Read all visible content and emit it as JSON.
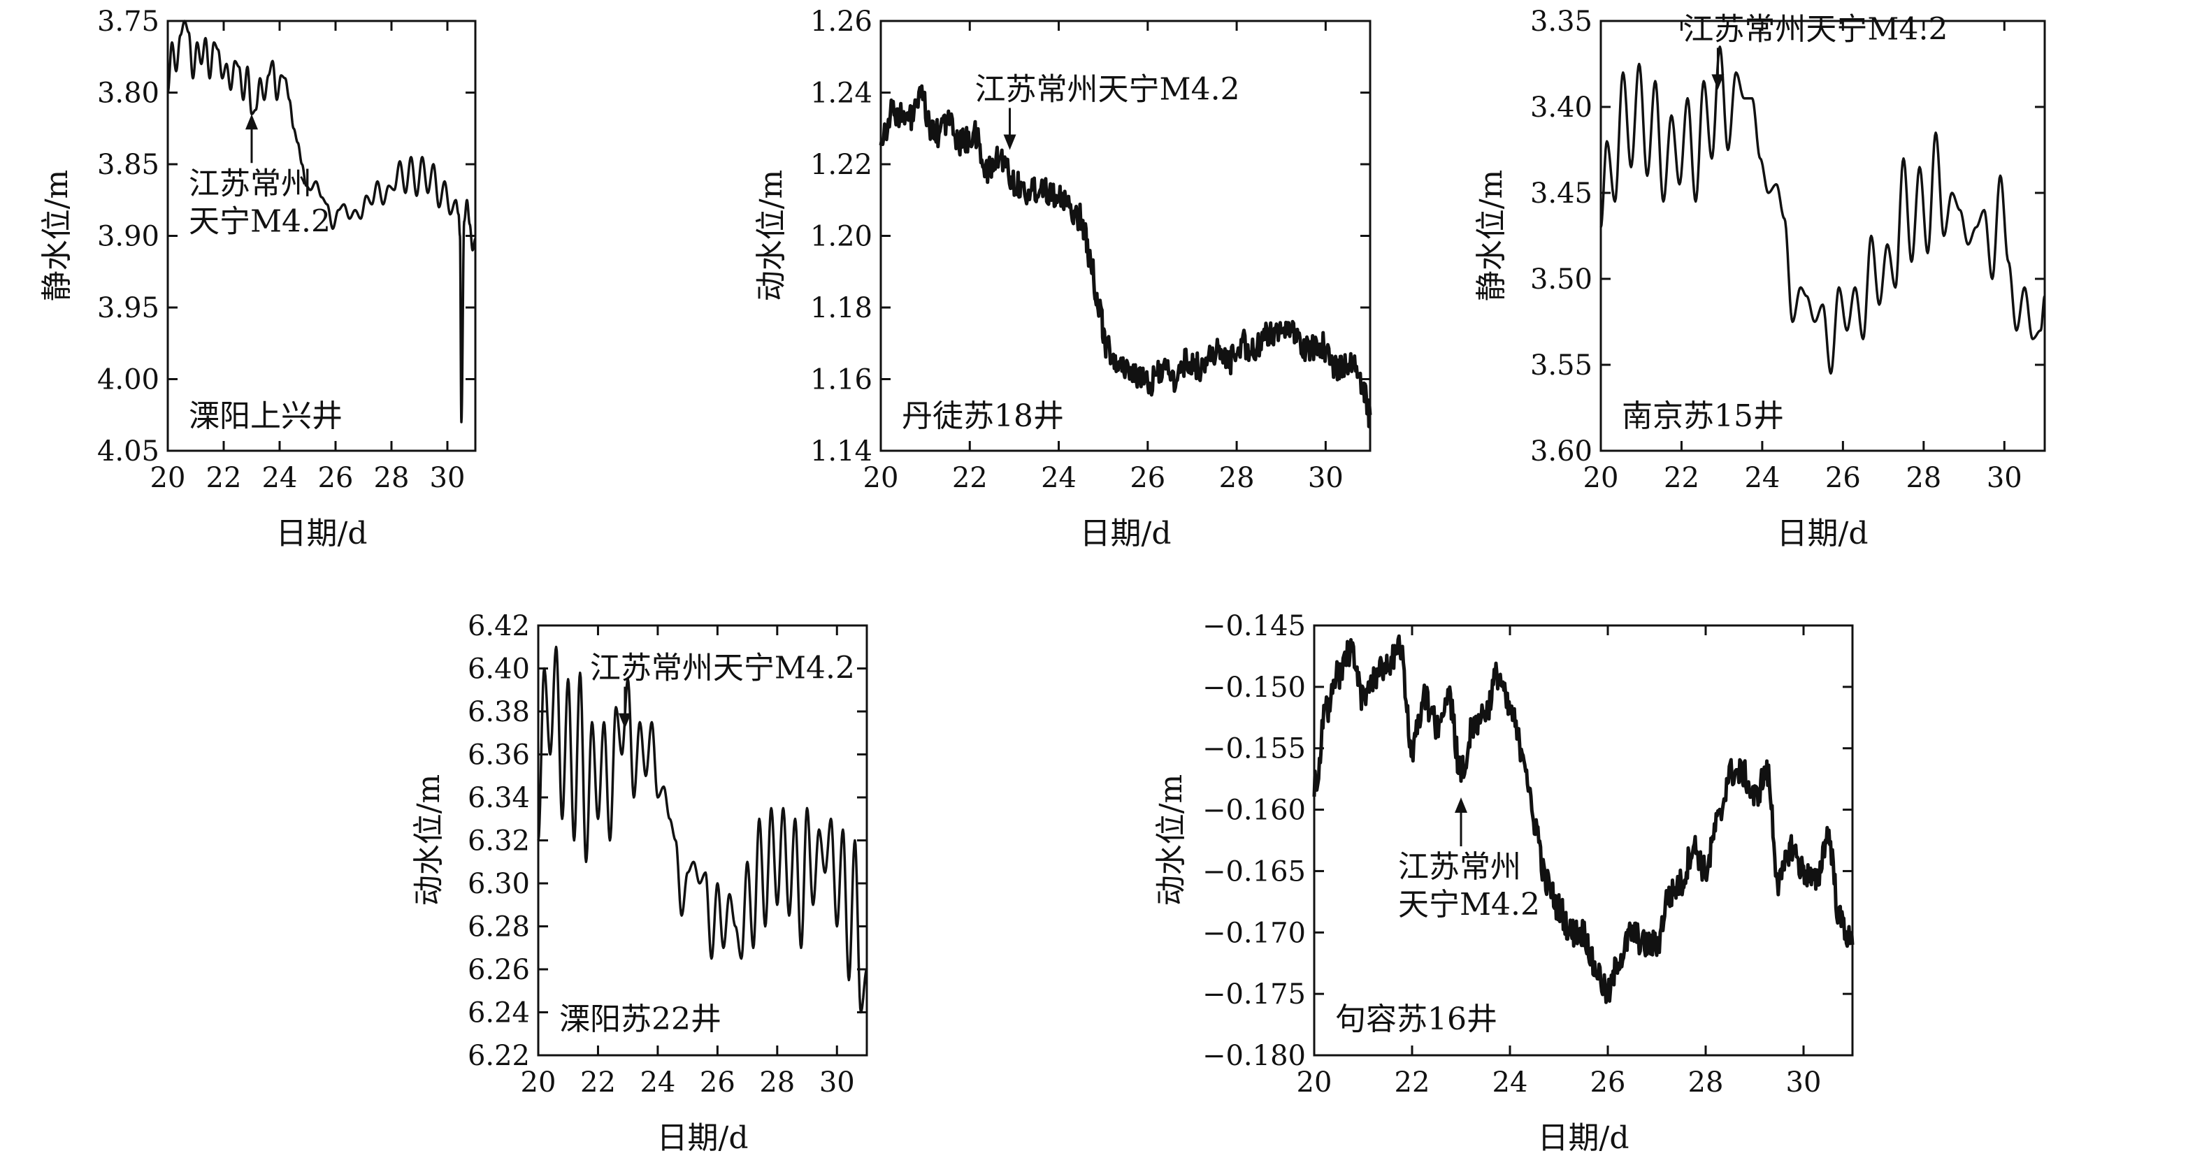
{
  "chart_data": [
    {
      "type": "line",
      "panel": "a",
      "well_name": "溧阳上兴井",
      "xlabel": "日期/d",
      "ylabel": "静水位/m",
      "xlim": [
        20,
        31
      ],
      "ylim": [
        3.75,
        4.05
      ],
      "y_inverted": true,
      "xticks": [
        "20",
        "22",
        "24",
        "26",
        "28",
        "30"
      ],
      "yticks": [
        "3.75",
        "3.80",
        "3.85",
        "3.90",
        "3.95",
        "4.00",
        "4.05"
      ],
      "noise": 0,
      "annotation": {
        "text_lines": [
          "江苏常州",
          "天宁M4.2"
        ],
        "x": 23.0,
        "y": 3.815,
        "arrow": "up"
      },
      "series": [
        {
          "x": [
            20.0,
            20.15,
            20.3,
            20.45,
            20.6,
            20.75,
            20.9,
            21.05,
            21.2,
            21.35,
            21.5,
            21.65,
            21.8,
            21.95,
            22.1,
            22.25,
            22.4,
            22.55,
            22.7,
            22.85,
            23.0,
            23.15,
            23.3,
            23.45,
            23.6,
            23.75,
            23.9,
            24.05,
            24.2,
            24.35,
            24.5,
            24.65,
            24.8,
            24.95,
            25.1,
            25.3,
            25.5,
            25.7,
            25.9,
            26.1,
            26.3,
            26.5,
            26.7,
            26.9,
            27.1,
            27.3,
            27.5,
            27.7,
            27.9,
            28.1,
            28.3,
            28.5,
            28.7,
            28.9,
            29.1,
            29.3,
            29.5,
            29.7,
            29.9,
            30.1,
            30.3,
            30.4,
            30.45,
            30.5,
            30.6,
            30.7,
            30.8,
            30.9,
            31.0
          ],
          "y": [
            3.8,
            3.765,
            3.785,
            3.76,
            3.75,
            3.758,
            3.79,
            3.765,
            3.78,
            3.762,
            3.79,
            3.765,
            3.77,
            3.79,
            3.78,
            3.798,
            3.778,
            3.782,
            3.805,
            3.782,
            3.815,
            3.812,
            3.79,
            3.805,
            3.788,
            3.778,
            3.805,
            3.788,
            3.79,
            3.805,
            3.825,
            3.835,
            3.85,
            3.865,
            3.868,
            3.862,
            3.873,
            3.878,
            3.895,
            3.882,
            3.878,
            3.888,
            3.882,
            3.888,
            3.872,
            3.878,
            3.862,
            3.878,
            3.865,
            3.868,
            3.848,
            3.87,
            3.845,
            3.872,
            3.845,
            3.87,
            3.85,
            3.88,
            3.862,
            3.885,
            3.875,
            3.885,
            3.9,
            4.03,
            3.89,
            3.875,
            3.892,
            3.91,
            3.902
          ]
        }
      ]
    },
    {
      "type": "line",
      "panel": "b",
      "well_name": "丹徒苏18井",
      "xlabel": "日期/d",
      "ylabel": "动水位/m",
      "xlim": [
        20,
        31
      ],
      "ylim": [
        1.14,
        1.26
      ],
      "y_inverted": false,
      "xticks": [
        "20",
        "22",
        "24",
        "26",
        "28",
        "30"
      ],
      "yticks": [
        "1.14",
        "1.16",
        "1.18",
        "1.20",
        "1.22",
        "1.24",
        "1.26"
      ],
      "noise": 0.004,
      "annotation": {
        "text_lines": [
          "江苏常州天宁M4.2"
        ],
        "x": 22.9,
        "y": 1.224,
        "arrow": "down"
      },
      "series": [
        {
          "x": [
            20.0,
            20.3,
            20.6,
            20.9,
            21.2,
            21.5,
            21.8,
            22.1,
            22.4,
            22.7,
            23.0,
            23.3,
            23.6,
            23.9,
            24.2,
            24.5,
            24.7,
            24.9,
            25.1,
            25.4,
            25.7,
            26.0,
            26.3,
            26.6,
            26.9,
            27.2,
            27.5,
            27.8,
            28.1,
            28.4,
            28.7,
            29.0,
            29.3,
            29.6,
            29.9,
            30.2,
            30.5,
            30.8,
            31.0
          ],
          "y": [
            1.228,
            1.235,
            1.232,
            1.238,
            1.228,
            1.232,
            1.226,
            1.228,
            1.218,
            1.222,
            1.215,
            1.212,
            1.214,
            1.212,
            1.208,
            1.205,
            1.195,
            1.18,
            1.168,
            1.164,
            1.162,
            1.158,
            1.163,
            1.16,
            1.165,
            1.163,
            1.168,
            1.165,
            1.17,
            1.168,
            1.172,
            1.175,
            1.172,
            1.168,
            1.17,
            1.163,
            1.165,
            1.16,
            1.15
          ]
        }
      ]
    },
    {
      "type": "line",
      "panel": "c",
      "well_name": "南京苏15井",
      "xlabel": "日期/d",
      "ylabel": "静水位/m",
      "xlim": [
        20,
        31
      ],
      "ylim": [
        3.35,
        3.6
      ],
      "y_inverted": true,
      "xticks": [
        "20",
        "22",
        "24",
        "26",
        "28",
        "30"
      ],
      "yticks": [
        "3.35",
        "3.40",
        "3.45",
        "3.50",
        "3.55",
        "3.60"
      ],
      "noise": 0,
      "annotation": {
        "text_lines": [
          "江苏常州天宁M4.2"
        ],
        "x": 22.9,
        "y": 3.39,
        "arrow": "down"
      },
      "series": [
        {
          "x": [
            20.0,
            20.15,
            20.35,
            20.55,
            20.75,
            20.95,
            21.15,
            21.35,
            21.55,
            21.75,
            21.95,
            22.15,
            22.35,
            22.55,
            22.75,
            22.95,
            23.15,
            23.35,
            23.55,
            23.75,
            23.95,
            24.15,
            24.35,
            24.55,
            24.75,
            24.95,
            25.1,
            25.3,
            25.5,
            25.7,
            25.9,
            26.1,
            26.3,
            26.5,
            26.7,
            26.9,
            27.1,
            27.3,
            27.5,
            27.7,
            27.9,
            28.1,
            28.3,
            28.5,
            28.7,
            28.9,
            29.1,
            29.3,
            29.5,
            29.7,
            29.9,
            30.1,
            30.3,
            30.5,
            30.7,
            30.9,
            31.0
          ],
          "y": [
            3.47,
            3.42,
            3.455,
            3.38,
            3.435,
            3.375,
            3.44,
            3.385,
            3.455,
            3.405,
            3.445,
            3.395,
            3.455,
            3.385,
            3.43,
            3.365,
            3.425,
            3.38,
            3.395,
            3.395,
            3.43,
            3.45,
            3.445,
            3.465,
            3.525,
            3.505,
            3.51,
            3.525,
            3.515,
            3.555,
            3.505,
            3.53,
            3.505,
            3.535,
            3.475,
            3.515,
            3.48,
            3.505,
            3.43,
            3.49,
            3.435,
            3.485,
            3.415,
            3.475,
            3.45,
            3.46,
            3.48,
            3.47,
            3.46,
            3.5,
            3.44,
            3.49,
            3.53,
            3.505,
            3.535,
            3.53,
            3.51
          ]
        }
      ]
    },
    {
      "type": "line",
      "panel": "d",
      "well_name": "溧阳苏22井",
      "xlabel": "日期/d",
      "ylabel": "动水位/m",
      "xlim": [
        20,
        31
      ],
      "ylim": [
        6.22,
        6.42
      ],
      "y_inverted": false,
      "xticks": [
        "20",
        "22",
        "24",
        "26",
        "28",
        "30"
      ],
      "yticks": [
        "6.22",
        "6.24",
        "6.26",
        "6.28",
        "6.30",
        "6.32",
        "6.34",
        "6.36",
        "6.38",
        "6.40",
        "6.42"
      ],
      "noise": 0,
      "annotation": {
        "text_lines": [
          "江苏常州天宁M4.2"
        ],
        "x": 22.9,
        "y": 6.372,
        "arrow": "down"
      },
      "series": [
        {
          "x": [
            20.0,
            20.2,
            20.4,
            20.6,
            20.8,
            21.0,
            21.2,
            21.4,
            21.6,
            21.8,
            22.0,
            22.2,
            22.4,
            22.6,
            22.8,
            23.0,
            23.2,
            23.4,
            23.6,
            23.8,
            24.0,
            24.2,
            24.4,
            24.6,
            24.8,
            25.0,
            25.2,
            25.4,
            25.6,
            25.8,
            26.0,
            26.2,
            26.4,
            26.6,
            26.8,
            27.0,
            27.2,
            27.4,
            27.6,
            27.8,
            28.0,
            28.2,
            28.4,
            28.6,
            28.8,
            29.0,
            29.2,
            29.4,
            29.6,
            29.8,
            30.0,
            30.2,
            30.4,
            30.6,
            30.8,
            31.0
          ],
          "y": [
            6.32,
            6.4,
            6.36,
            6.41,
            6.33,
            6.395,
            6.32,
            6.398,
            6.31,
            6.375,
            6.33,
            6.375,
            6.32,
            6.382,
            6.36,
            6.395,
            6.34,
            6.375,
            6.35,
            6.375,
            6.34,
            6.345,
            6.33,
            6.32,
            6.285,
            6.305,
            6.31,
            6.3,
            6.305,
            6.265,
            6.3,
            6.27,
            6.295,
            6.28,
            6.265,
            6.31,
            6.27,
            6.33,
            6.28,
            6.335,
            6.29,
            6.335,
            6.285,
            6.33,
            6.27,
            6.335,
            6.29,
            6.325,
            6.305,
            6.33,
            6.28,
            6.325,
            6.255,
            6.32,
            6.24,
            6.26
          ]
        }
      ]
    },
    {
      "type": "line",
      "panel": "e",
      "well_name": "句容苏16井",
      "xlabel": "日期/d",
      "ylabel": "动水位/m",
      "xlim": [
        20,
        31
      ],
      "ylim": [
        -0.18,
        -0.145
      ],
      "y_inverted": false,
      "xticks": [
        "20",
        "22",
        "24",
        "26",
        "28",
        "30"
      ],
      "yticks": [
        "-0.180",
        "-0.175",
        "-0.170",
        "-0.165",
        "-0.160",
        "-0.155",
        "-0.150",
        "-0.145"
      ],
      "noise": 0.0012,
      "annotation": {
        "text_lines": [
          "江苏常州",
          "天宁M4.2"
        ],
        "x": 23.0,
        "y": -0.159,
        "arrow": "up"
      },
      "series": [
        {
          "x": [
            20.0,
            20.25,
            20.5,
            20.75,
            21.0,
            21.25,
            21.5,
            21.75,
            22.0,
            22.25,
            22.5,
            22.75,
            23.0,
            23.25,
            23.5,
            23.75,
            24.0,
            24.25,
            24.5,
            24.75,
            25.0,
            25.25,
            25.5,
            25.75,
            26.0,
            26.25,
            26.5,
            26.75,
            27.0,
            27.25,
            27.5,
            27.75,
            28.0,
            28.25,
            28.5,
            28.75,
            29.0,
            29.25,
            29.5,
            29.75,
            30.0,
            30.25,
            30.5,
            30.75,
            31.0
          ],
          "y": [
            -0.158,
            -0.152,
            -0.149,
            -0.147,
            -0.151,
            -0.149,
            -0.148,
            -0.147,
            -0.155,
            -0.151,
            -0.153,
            -0.151,
            -0.157,
            -0.153,
            -0.152,
            -0.149,
            -0.152,
            -0.155,
            -0.161,
            -0.166,
            -0.168,
            -0.17,
            -0.17,
            -0.173,
            -0.175,
            -0.172,
            -0.17,
            -0.171,
            -0.171,
            -0.167,
            -0.166,
            -0.163,
            -0.165,
            -0.161,
            -0.157,
            -0.157,
            -0.159,
            -0.157,
            -0.166,
            -0.163,
            -0.165,
            -0.166,
            -0.162,
            -0.169,
            -0.171
          ]
        }
      ]
    }
  ]
}
